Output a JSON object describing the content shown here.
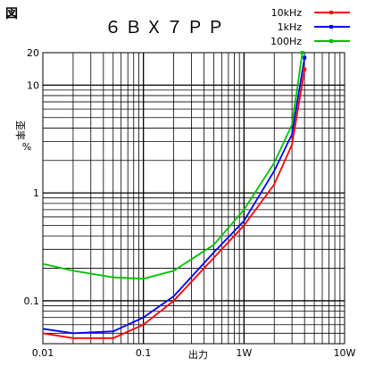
{
  "corner_label": "図",
  "chart_data": {
    "type": "line",
    "title": "６ＢＸ７ＰＰ",
    "xlabel": "出力",
    "ylabel": "歪率",
    "ylabel_unit": "%",
    "x_scale": "log",
    "y_scale": "log",
    "xlim": [
      0.01,
      10
    ],
    "ylim": [
      0.04,
      20
    ],
    "grid": true,
    "legend_position": "top-right",
    "x_ticks": [
      {
        "value": 0.01,
        "label": "0.01"
      },
      {
        "value": 0.1,
        "label": "0.1"
      },
      {
        "value": 1,
        "label": "1W"
      },
      {
        "value": 10,
        "label": "10W"
      }
    ],
    "y_ticks": [
      {
        "value": 0.1,
        "label": "0.1"
      },
      {
        "value": 1,
        "label": "1"
      },
      {
        "value": 10,
        "label": "10"
      },
      {
        "value": 20,
        "label": "20"
      }
    ],
    "series": [
      {
        "name": "10kHz",
        "color": "#ff0000",
        "marker": "square",
        "x": [
          0.01,
          0.02,
          0.05,
          0.1,
          0.2,
          0.5,
          1,
          2,
          3,
          4
        ],
        "y": [
          0.05,
          0.045,
          0.045,
          0.06,
          0.1,
          0.25,
          0.5,
          1.2,
          2.8,
          14
        ]
      },
      {
        "name": "1kHz",
        "color": "#0000ff",
        "marker": "square",
        "x": [
          0.01,
          0.02,
          0.05,
          0.1,
          0.2,
          0.5,
          1,
          2,
          3,
          4
        ],
        "y": [
          0.055,
          0.05,
          0.052,
          0.07,
          0.11,
          0.28,
          0.55,
          1.6,
          3.5,
          18
        ]
      },
      {
        "name": "100Hz",
        "color": "#00c000",
        "marker": "square",
        "x": [
          0.01,
          0.02,
          0.05,
          0.1,
          0.2,
          0.5,
          1,
          2,
          3,
          3.8
        ],
        "y": [
          0.22,
          0.19,
          0.165,
          0.16,
          0.19,
          0.33,
          0.7,
          1.9,
          4.3,
          20
        ]
      }
    ]
  }
}
